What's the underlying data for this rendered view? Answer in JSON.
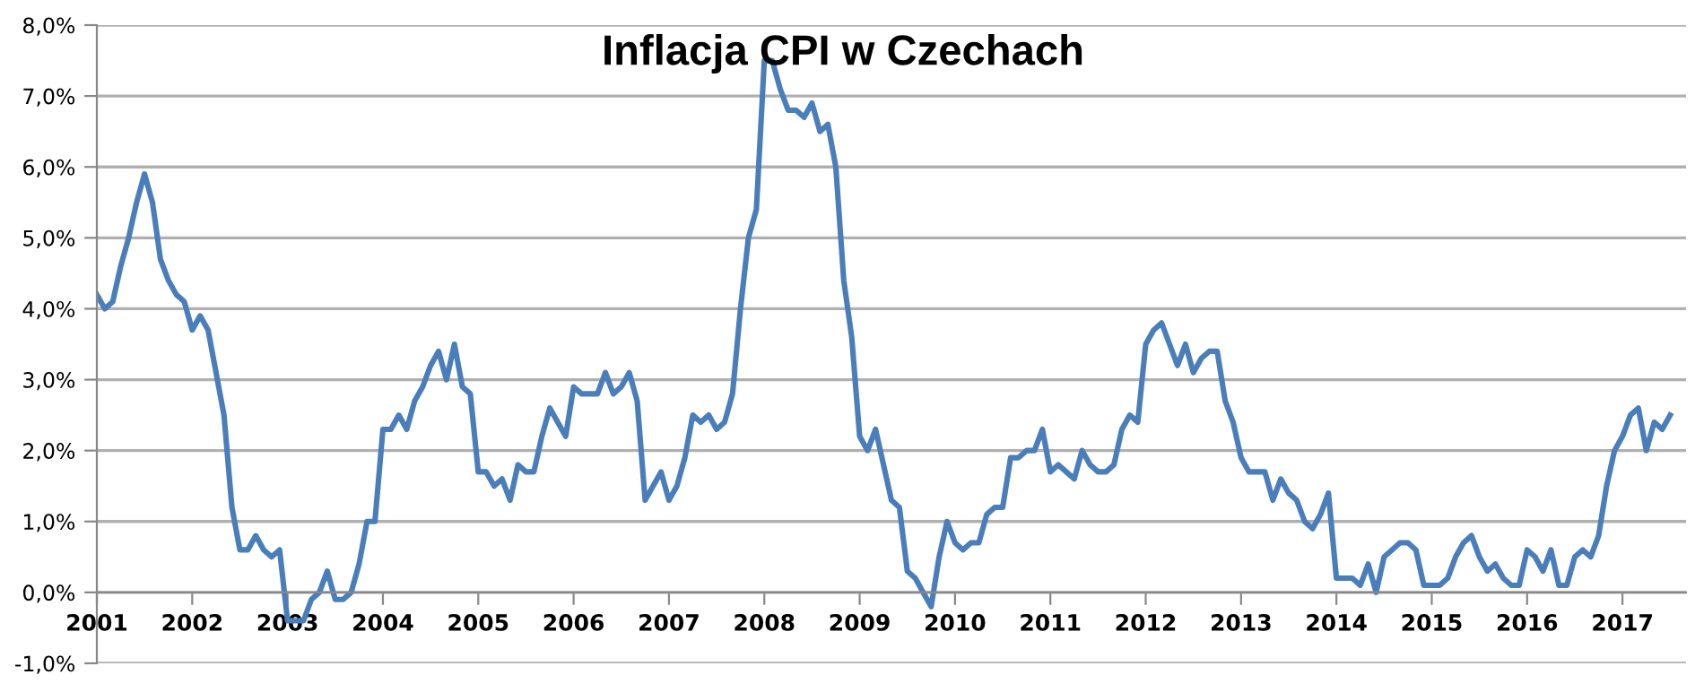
{
  "chart_data": {
    "type": "line",
    "title": "Inflacja CPI w Czechach",
    "x": [
      "2001-01",
      "2001-02",
      "2001-03",
      "2001-04",
      "2001-05",
      "2001-06",
      "2001-07",
      "2001-08",
      "2001-09",
      "2001-10",
      "2001-11",
      "2001-12",
      "2002-01",
      "2002-02",
      "2002-03",
      "2002-04",
      "2002-05",
      "2002-06",
      "2002-07",
      "2002-08",
      "2002-09",
      "2002-10",
      "2002-11",
      "2002-12",
      "2003-01",
      "2003-02",
      "2003-03",
      "2003-04",
      "2003-05",
      "2003-06",
      "2003-07",
      "2003-08",
      "2003-09",
      "2003-10",
      "2003-11",
      "2003-12",
      "2004-01",
      "2004-02",
      "2004-03",
      "2004-04",
      "2004-05",
      "2004-06",
      "2004-07",
      "2004-08",
      "2004-09",
      "2004-10",
      "2004-11",
      "2004-12",
      "2005-01",
      "2005-02",
      "2005-03",
      "2005-04",
      "2005-05",
      "2005-06",
      "2005-07",
      "2005-08",
      "2005-09",
      "2005-10",
      "2005-11",
      "2005-12",
      "2006-01",
      "2006-02",
      "2006-03",
      "2006-04",
      "2006-05",
      "2006-06",
      "2006-07",
      "2006-08",
      "2006-09",
      "2006-10",
      "2006-11",
      "2006-12",
      "2007-01",
      "2007-02",
      "2007-03",
      "2007-04",
      "2007-05",
      "2007-06",
      "2007-07",
      "2007-08",
      "2007-09",
      "2007-10",
      "2007-11",
      "2007-12",
      "2008-01",
      "2008-02",
      "2008-03",
      "2008-04",
      "2008-05",
      "2008-06",
      "2008-07",
      "2008-08",
      "2008-09",
      "2008-10",
      "2008-11",
      "2008-12",
      "2009-01",
      "2009-02",
      "2009-03",
      "2009-04",
      "2009-05",
      "2009-06",
      "2009-07",
      "2009-08",
      "2009-09",
      "2009-10",
      "2009-11",
      "2009-12",
      "2010-01",
      "2010-02",
      "2010-03",
      "2010-04",
      "2010-05",
      "2010-06",
      "2010-07",
      "2010-08",
      "2010-09",
      "2010-10",
      "2010-11",
      "2010-12",
      "2011-01",
      "2011-02",
      "2011-03",
      "2011-04",
      "2011-05",
      "2011-06",
      "2011-07",
      "2011-08",
      "2011-09",
      "2011-10",
      "2011-11",
      "2011-12",
      "2012-01",
      "2012-02",
      "2012-03",
      "2012-04",
      "2012-05",
      "2012-06",
      "2012-07",
      "2012-08",
      "2012-09",
      "2012-10",
      "2012-11",
      "2012-12",
      "2013-01",
      "2013-02",
      "2013-03",
      "2013-04",
      "2013-05",
      "2013-06",
      "2013-07",
      "2013-08",
      "2013-09",
      "2013-10",
      "2013-11",
      "2013-12",
      "2014-01",
      "2014-02",
      "2014-03",
      "2014-04",
      "2014-05",
      "2014-06",
      "2014-07",
      "2014-08",
      "2014-09",
      "2014-10",
      "2014-11",
      "2014-12",
      "2015-01",
      "2015-02",
      "2015-03",
      "2015-04",
      "2015-05",
      "2015-06",
      "2015-07",
      "2015-08",
      "2015-09",
      "2015-10",
      "2015-11",
      "2015-12",
      "2016-01",
      "2016-02",
      "2016-03",
      "2016-04",
      "2016-05",
      "2016-06",
      "2016-07",
      "2016-08",
      "2016-09",
      "2016-10",
      "2016-11",
      "2016-12",
      "2017-01",
      "2017-02",
      "2017-03",
      "2017-04",
      "2017-05",
      "2017-06",
      "2017-07"
    ],
    "series": [
      {
        "color": "#4a7ebb",
        "values": [
          4.2,
          4.0,
          4.1,
          4.6,
          5.0,
          5.5,
          5.9,
          5.5,
          4.7,
          4.4,
          4.2,
          4.1,
          3.7,
          3.9,
          3.7,
          3.1,
          2.5,
          1.2,
          0.6,
          0.6,
          0.8,
          0.6,
          0.5,
          0.6,
          -0.4,
          -0.4,
          -0.4,
          -0.1,
          0.0,
          0.3,
          -0.1,
          -0.1,
          0.0,
          0.4,
          1.0,
          1.0,
          2.3,
          2.3,
          2.5,
          2.3,
          2.7,
          2.9,
          3.2,
          3.4,
          3.0,
          3.5,
          2.9,
          2.8,
          1.7,
          1.7,
          1.5,
          1.6,
          1.3,
          1.8,
          1.7,
          1.7,
          2.2,
          2.6,
          2.4,
          2.2,
          2.9,
          2.8,
          2.8,
          2.8,
          3.1,
          2.8,
          2.9,
          3.1,
          2.7,
          1.3,
          1.5,
          1.7,
          1.3,
          1.5,
          1.9,
          2.5,
          2.4,
          2.5,
          2.3,
          2.4,
          2.8,
          4.0,
          5.0,
          5.4,
          7.5,
          7.5,
          7.1,
          6.8,
          6.8,
          6.7,
          6.9,
          6.5,
          6.6,
          6.0,
          4.4,
          3.6,
          2.2,
          2.0,
          2.3,
          1.8,
          1.3,
          1.2,
          0.3,
          0.2,
          0.0,
          -0.2,
          0.5,
          1.0,
          0.7,
          0.6,
          0.7,
          0.7,
          1.1,
          1.2,
          1.2,
          1.9,
          1.9,
          2.0,
          2.0,
          2.3,
          1.7,
          1.8,
          1.7,
          1.6,
          2.0,
          1.8,
          1.7,
          1.7,
          1.8,
          2.3,
          2.5,
          2.4,
          3.5,
          3.7,
          3.8,
          3.5,
          3.2,
          3.5,
          3.1,
          3.3,
          3.4,
          3.4,
          2.7,
          2.4,
          1.9,
          1.7,
          1.7,
          1.7,
          1.3,
          1.6,
          1.4,
          1.3,
          1.0,
          0.9,
          1.1,
          1.4,
          0.2,
          0.2,
          0.2,
          0.1,
          0.4,
          0.0,
          0.5,
          0.6,
          0.7,
          0.7,
          0.6,
          0.1,
          0.1,
          0.1,
          0.2,
          0.5,
          0.7,
          0.8,
          0.5,
          0.3,
          0.4,
          0.2,
          0.1,
          0.1,
          0.6,
          0.5,
          0.3,
          0.6,
          0.1,
          0.1,
          0.5,
          0.6,
          0.5,
          0.8,
          1.5,
          2.0,
          2.2,
          2.5,
          2.6,
          2.0,
          2.4,
          2.3,
          2.5
        ]
      }
    ],
    "xlim": [
      "2001-01",
      "2017-09"
    ],
    "xticks": [
      {
        "value": "2001-01",
        "label": "2001"
      },
      {
        "value": "2002-01",
        "label": "2002"
      },
      {
        "value": "2003-01",
        "label": "2003"
      },
      {
        "value": "2004-01",
        "label": "2004"
      },
      {
        "value": "2005-01",
        "label": "2005"
      },
      {
        "value": "2006-01",
        "label": "2006"
      },
      {
        "value": "2007-01",
        "label": "2007"
      },
      {
        "value": "2008-01",
        "label": "2008"
      },
      {
        "value": "2009-01",
        "label": "2009"
      },
      {
        "value": "2010-01",
        "label": "2010"
      },
      {
        "value": "2011-01",
        "label": "2011"
      },
      {
        "value": "2012-01",
        "label": "2012"
      },
      {
        "value": "2013-01",
        "label": "2013"
      },
      {
        "value": "2014-01",
        "label": "2014"
      },
      {
        "value": "2015-01",
        "label": "2015"
      },
      {
        "value": "2016-01",
        "label": "2016"
      },
      {
        "value": "2017-01",
        "label": "2017"
      }
    ],
    "ylim": [
      -1,
      8
    ],
    "yticks": [
      {
        "value": -1,
        "label": "-1,0%"
      },
      {
        "value": 0,
        "label": "0,0%"
      },
      {
        "value": 1,
        "label": "1,0%"
      },
      {
        "value": 2,
        "label": "2,0%"
      },
      {
        "value": 3,
        "label": "3,0%"
      },
      {
        "value": 4,
        "label": "4,0%"
      },
      {
        "value": 5,
        "label": "5,0%"
      },
      {
        "value": 6,
        "label": "6,0%"
      },
      {
        "value": 7,
        "label": "7,0%"
      },
      {
        "value": 8,
        "label": "8,0%"
      }
    ],
    "grid": "y",
    "legend": false,
    "marker": "none",
    "line_style": "solid"
  }
}
